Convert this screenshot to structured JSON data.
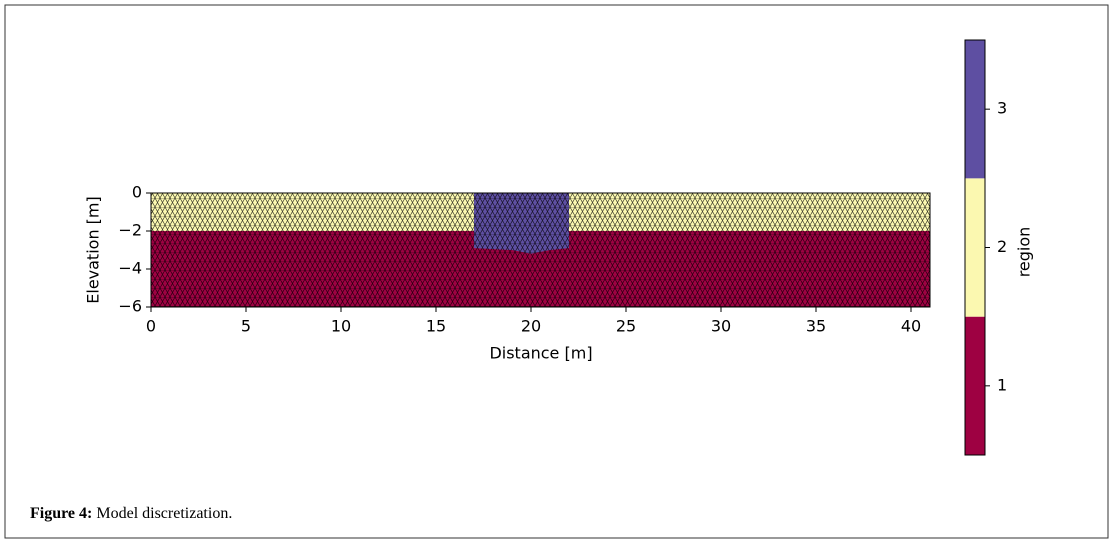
{
  "chart_data": {
    "type": "mesh",
    "xlabel": "Distance [m]",
    "ylabel": "Elevation [m]",
    "xlim": [
      0,
      41
    ],
    "ylim": [
      -6,
      0
    ],
    "xticks": [
      0,
      5,
      10,
      15,
      20,
      25,
      30,
      35,
      40
    ],
    "yticks": [
      {
        "value": 0,
        "label": "0"
      },
      {
        "value": -2,
        "label": "−2"
      },
      {
        "value": -4,
        "label": "−4"
      },
      {
        "value": -6,
        "label": "−6"
      }
    ],
    "regions": [
      {
        "value": 1,
        "color": "#9e0142",
        "x": [
          0,
          41,
          41,
          0
        ],
        "y": [
          -2,
          -2,
          -6,
          -6
        ]
      },
      {
        "value": 2,
        "color": "#fbf8b0",
        "x": [
          0,
          41,
          41,
          0
        ],
        "y": [
          0,
          0,
          -2,
          -2
        ]
      },
      {
        "value": 3,
        "color": "#5e4fa2",
        "x": [
          17,
          22,
          22,
          21,
          20,
          19,
          17
        ],
        "y": [
          0,
          0,
          -2.9,
          -3.0,
          -3.2,
          -3.0,
          -2.9
        ]
      }
    ],
    "colorbar": {
      "label": "region",
      "lim": [
        0.5,
        3.5
      ],
      "ticks": [
        1,
        2,
        3
      ]
    },
    "caption": {
      "label": "Figure 4:",
      "text": "Model discretization."
    }
  }
}
